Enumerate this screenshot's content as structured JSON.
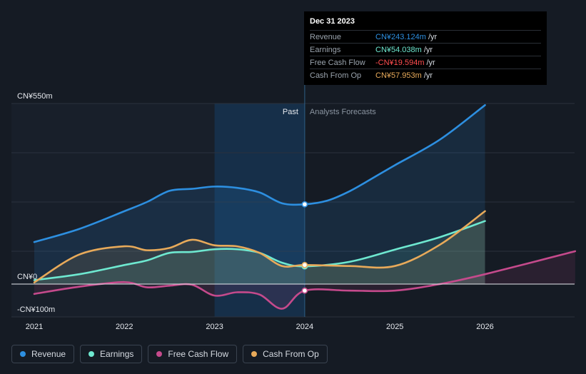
{
  "colors": {
    "background": "#151b24",
    "revenue": "#2d8fe0",
    "earnings": "#6ee8d0",
    "fcf": "#c54a8c",
    "cfo": "#e8aa5a",
    "fcf_value": "#ff4d4f"
  },
  "tooltip": {
    "date": "Dec 31 2023",
    "rows": [
      {
        "label": "Revenue",
        "value": "CN¥243.124m",
        "unit": "/yr",
        "color": "#2d8fe0"
      },
      {
        "label": "Earnings",
        "value": "CN¥54.038m",
        "unit": "/yr",
        "color": "#6ee8d0"
      },
      {
        "label": "Free Cash Flow",
        "value": "-CN¥19.594m",
        "unit": "/yr",
        "color": "#ff4d4f"
      },
      {
        "label": "Cash From Op",
        "value": "CN¥57.953m",
        "unit": "/yr",
        "color": "#e8aa5a"
      }
    ]
  },
  "legend": [
    {
      "label": "Revenue",
      "color": "#2d8fe0"
    },
    {
      "label": "Earnings",
      "color": "#6ee8d0"
    },
    {
      "label": "Free Cash Flow",
      "color": "#c54a8c"
    },
    {
      "label": "Cash From Op",
      "color": "#e8aa5a"
    }
  ],
  "chart_data": {
    "type": "line",
    "y_unit": "CN¥ millions",
    "ylim": [
      -100,
      550
    ],
    "y_tick_labels": [
      "CN¥550m",
      "CN¥0",
      "-CN¥100m"
    ],
    "y_tick_values": [
      550,
      0,
      -100
    ],
    "x_tick_labels": [
      "2021",
      "2022",
      "2023",
      "2024",
      "2025",
      "2026"
    ],
    "x_tick_values": [
      2021,
      2022,
      2023,
      2024,
      2025,
      2026
    ],
    "past_label": "Past",
    "forecast_label": "Analysts Forecasts",
    "divider_x": 2024.0,
    "highlight_start_x": 2023.0,
    "marker_x": 2024.0,
    "series": [
      {
        "name": "Revenue",
        "key": "revenue",
        "points": [
          [
            2021.0,
            128
          ],
          [
            2021.5,
            168
          ],
          [
            2022.0,
            222
          ],
          [
            2022.25,
            250
          ],
          [
            2022.5,
            284
          ],
          [
            2022.75,
            290
          ],
          [
            2023.0,
            297
          ],
          [
            2023.25,
            293
          ],
          [
            2023.5,
            279
          ],
          [
            2023.75,
            246
          ],
          [
            2024.0,
            243
          ],
          [
            2024.25,
            254
          ],
          [
            2024.5,
            283
          ],
          [
            2024.75,
            322
          ],
          [
            2025.0,
            362
          ],
          [
            2025.5,
            440
          ],
          [
            2026.0,
            545
          ]
        ]
      },
      {
        "name": "Earnings",
        "key": "earnings",
        "points": [
          [
            2021.0,
            12
          ],
          [
            2021.5,
            30
          ],
          [
            2022.0,
            58
          ],
          [
            2022.25,
            72
          ],
          [
            2022.5,
            95
          ],
          [
            2022.75,
            98
          ],
          [
            2023.0,
            106
          ],
          [
            2023.25,
            106
          ],
          [
            2023.5,
            95
          ],
          [
            2023.75,
            65
          ],
          [
            2024.0,
            54
          ],
          [
            2024.5,
            68
          ],
          [
            2025.0,
            105
          ],
          [
            2025.5,
            143
          ],
          [
            2026.0,
            192
          ]
        ]
      },
      {
        "name": "Free Cash Flow",
        "key": "fcf",
        "points": [
          [
            2021.0,
            -30
          ],
          [
            2021.5,
            -8
          ],
          [
            2022.0,
            6
          ],
          [
            2022.25,
            -10
          ],
          [
            2022.5,
            -5
          ],
          [
            2022.75,
            -2
          ],
          [
            2023.0,
            -35
          ],
          [
            2023.25,
            -25
          ],
          [
            2023.5,
            -32
          ],
          [
            2023.75,
            -75
          ],
          [
            2024.0,
            -20
          ],
          [
            2024.5,
            -20
          ],
          [
            2025.0,
            -20
          ],
          [
            2025.5,
            0
          ],
          [
            2026.0,
            30
          ],
          [
            2027.0,
            100
          ]
        ]
      },
      {
        "name": "Cash From Op",
        "key": "cfo",
        "points": [
          [
            2021.0,
            5
          ],
          [
            2021.5,
            90
          ],
          [
            2022.0,
            115
          ],
          [
            2022.25,
            103
          ],
          [
            2022.5,
            110
          ],
          [
            2022.75,
            135
          ],
          [
            2023.0,
            118
          ],
          [
            2023.25,
            115
          ],
          [
            2023.5,
            95
          ],
          [
            2023.75,
            55
          ],
          [
            2024.0,
            58
          ],
          [
            2024.5,
            55
          ],
          [
            2025.0,
            55
          ],
          [
            2025.5,
            120
          ],
          [
            2026.0,
            222
          ]
        ]
      }
    ]
  }
}
